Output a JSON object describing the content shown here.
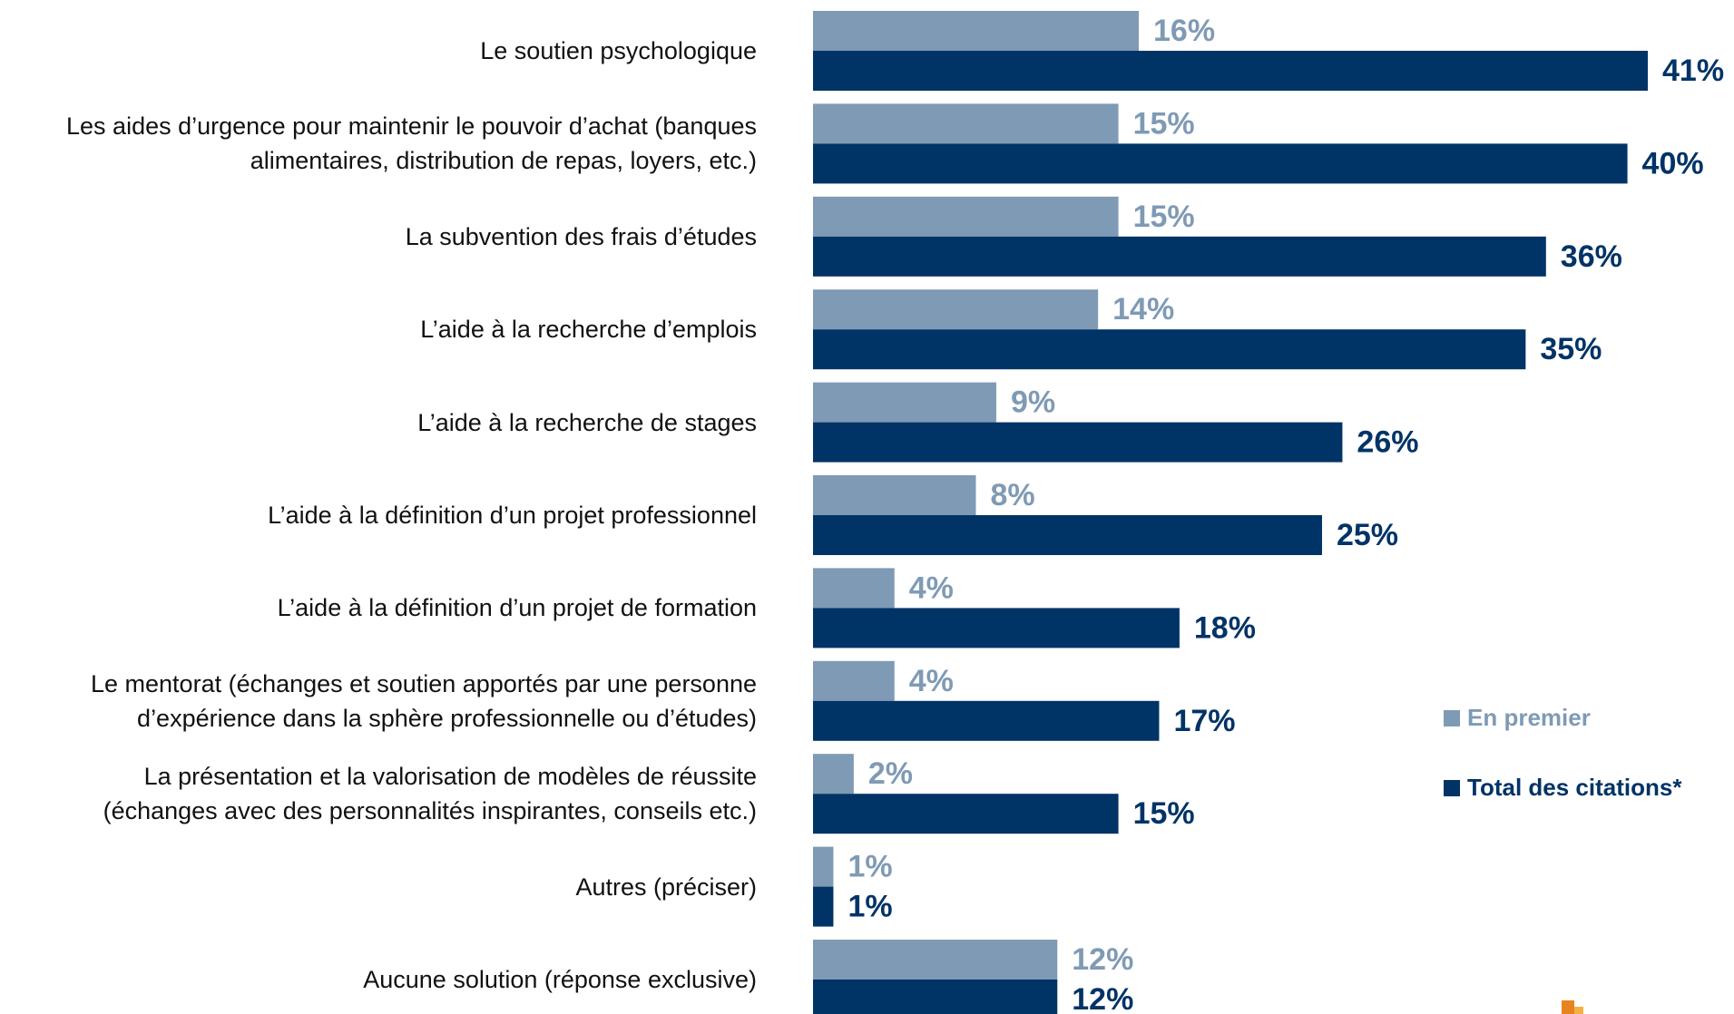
{
  "chart_data": {
    "type": "hbar",
    "categories": [
      "Le soutien psychologique",
      "Les aides d’urgence pour maintenir le pouvoir d’achat (banques\nalimentaires, distribution de repas, loyers, etc.)",
      "La subvention des frais d’études",
      "L’aide à la recherche d’emplois",
      "L’aide à la recherche de stages",
      "L’aide à la définition d’un projet professionnel",
      "L’aide à la définition d’un projet de formation",
      "Le mentorat (échanges et soutien apportés par une personne\nd’expérience dans la sphère professionnelle ou d’études)",
      "La présentation et la valorisation de modèles de réussite\n(échanges avec des personnalités inspirantes, conseils etc.)",
      "Autres (préciser)",
      "Aucune solution (réponse exclusive)"
    ],
    "series": [
      {
        "name": "En premier",
        "color": "#7f9ab5",
        "values": [
          16,
          15,
          15,
          14,
          9,
          8,
          4,
          4,
          2,
          1,
          12
        ],
        "value_labels": [
          "16%",
          "15%",
          "15%",
          "14%",
          "9%",
          "8%",
          "4%",
          "4%",
          "2%",
          "1%",
          "12%"
        ]
      },
      {
        "name": "Total des citations*",
        "color": "#003366",
        "values": [
          41,
          40,
          36,
          35,
          26,
          25,
          18,
          17,
          15,
          1,
          12
        ],
        "value_labels": [
          "41%",
          "40%",
          "36%",
          "35%",
          "26%",
          "25%",
          "18%",
          "17%",
          "15%",
          "1%",
          "12%"
        ]
      }
    ]
  }
}
